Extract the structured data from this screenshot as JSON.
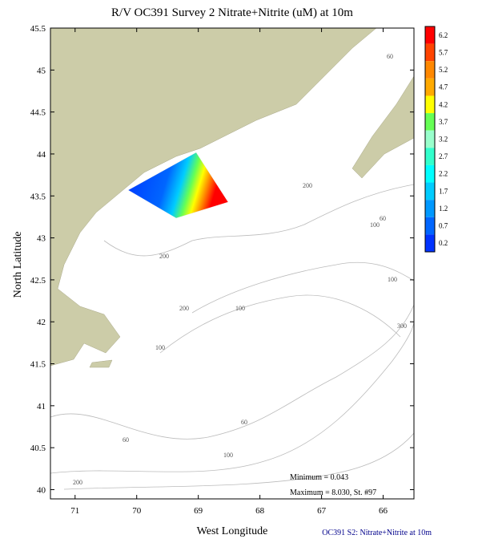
{
  "chart_data": {
    "type": "map",
    "title": "R/V OC391 Survey 2 Nitrate+Nitrite (uM) at 10m",
    "xlabel": "West Longitude",
    "ylabel": "North Latitude",
    "xlim": [
      71.4,
      65.5
    ],
    "xticks": [
      71,
      70,
      69,
      68,
      67,
      66
    ],
    "ylim": [
      39.89,
      45.5
    ],
    "yticks": [
      40,
      40.5,
      41,
      41.5,
      42,
      42.5,
      43,
      43.5,
      44,
      44.5,
      45,
      45.5
    ],
    "colorbar": {
      "ticks": [
        6.2,
        5.7,
        5.2,
        4.7,
        4.2,
        3.7,
        3.2,
        2.7,
        2.2,
        1.7,
        1.2,
        0.7,
        0.2
      ],
      "colors": [
        "#ff0000",
        "#ff4400",
        "#ff8800",
        "#ffaa00",
        "#ffff00",
        "#66ff55",
        "#99ffcc",
        "#33ffcc",
        "#00ffff",
        "#00ccff",
        "#0099ff",
        "#0066ff",
        "#0033ff"
      ]
    },
    "contour_labels": [
      "60",
      "100",
      "60",
      "200",
      "200",
      "100",
      "200",
      "100",
      "100",
      "300",
      "60",
      "60",
      "100",
      "200"
    ],
    "annotations": [
      "Minimum = 0.043",
      "Maximum = 8.030, St. #97"
    ],
    "footer": "OC391 S2: Nitrate+Nitrite at 10m"
  }
}
